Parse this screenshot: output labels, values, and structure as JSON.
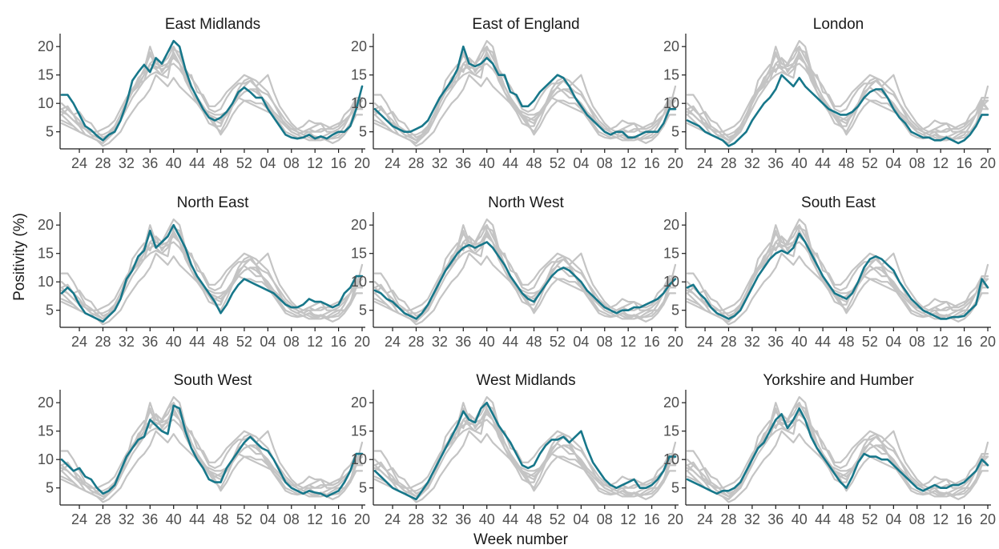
{
  "chart_data": {
    "type": "line",
    "xlabel": "Week number",
    "ylabel": "Positivity (%)",
    "x_ticks": [
      "24",
      "28",
      "32",
      "36",
      "40",
      "44",
      "48",
      "52",
      "04",
      "08",
      "12",
      "16",
      "20"
    ],
    "y_ticks": [
      5,
      10,
      15,
      20
    ],
    "ylim": [
      2,
      22
    ],
    "grid": false,
    "week_order": [
      21,
      22,
      23,
      24,
      25,
      26,
      27,
      28,
      29,
      30,
      31,
      32,
      33,
      34,
      35,
      36,
      37,
      38,
      39,
      40,
      41,
      42,
      43,
      44,
      45,
      46,
      47,
      48,
      49,
      50,
      51,
      52,
      "01",
      "02",
      "03",
      "04",
      "05",
      "06",
      "07",
      "08",
      "09",
      "10",
      "11",
      "12",
      "13",
      "14",
      "15",
      "16",
      "17",
      "18",
      "19",
      "20"
    ],
    "highlight_color": "#17778a",
    "other_regions_color": "#c4c4c4",
    "panels": [
      {
        "region": "East Midlands",
        "values": [
          11.5,
          11.5,
          10,
          8,
          6,
          5.3,
          4.3,
          3.5,
          4.5,
          5,
          7,
          10,
          14,
          15.5,
          16.8,
          15.5,
          18,
          17,
          19,
          21,
          20,
          16,
          13,
          11,
          9,
          7.5,
          7,
          7.5,
          8.5,
          10,
          12,
          12.8,
          12,
          11,
          11,
          9,
          7.5,
          6,
          4.5,
          4,
          3.8,
          4,
          4.5,
          3.8,
          4.2,
          3.8,
          4.5,
          5,
          5,
          6,
          9,
          13
        ]
      },
      {
        "region": "East of England",
        "values": [
          9,
          8,
          7,
          6,
          5.5,
          5,
          5,
          5.5,
          6,
          7,
          9,
          11,
          12.5,
          14,
          16,
          20,
          17,
          16.5,
          17,
          18,
          17,
          15,
          15,
          12,
          11.5,
          9.5,
          9.5,
          10.5,
          12,
          13,
          14,
          15,
          14.5,
          13,
          11,
          9.5,
          8,
          7,
          6,
          5,
          4.5,
          5,
          5,
          4,
          4,
          4.5,
          5,
          5,
          5,
          6.5,
          9,
          9
        ]
      },
      {
        "region": "London",
        "values": [
          7,
          6.5,
          6,
          5,
          4.5,
          4,
          3.5,
          2.5,
          3,
          4,
          5,
          7,
          8.5,
          10,
          11,
          12.5,
          15,
          14,
          13,
          14.5,
          13,
          12,
          11,
          10,
          9,
          8.5,
          8,
          8,
          8.5,
          9.5,
          11,
          12,
          12.5,
          12.5,
          11,
          9,
          7.5,
          6.5,
          5,
          4.5,
          4,
          4,
          3.5,
          3.5,
          4,
          3.5,
          3,
          3.5,
          4.5,
          6,
          8,
          8
        ]
      },
      {
        "region": "North East",
        "values": [
          8,
          9,
          8,
          6,
          4.5,
          4,
          3.5,
          3,
          4,
          5,
          7,
          10.5,
          12,
          14.5,
          15.5,
          19,
          16,
          17,
          18,
          20,
          18,
          16,
          13,
          11,
          9.5,
          8,
          6.5,
          4.5,
          6,
          8,
          9.5,
          10.5,
          10,
          9.5,
          9,
          8.5,
          8,
          7,
          6,
          5.5,
          5.5,
          6,
          7,
          6.5,
          6.5,
          6,
          5.5,
          6,
          8,
          9,
          11,
          11
        ]
      },
      {
        "region": "North West",
        "values": [
          8.5,
          8,
          7,
          6.5,
          5.5,
          4.5,
          4,
          3.5,
          4.5,
          6,
          8,
          10,
          12,
          13.5,
          15,
          16,
          16.5,
          16,
          16.5,
          17,
          16,
          14.5,
          13,
          11,
          9.5,
          8,
          7,
          6.5,
          8,
          9.5,
          11,
          12,
          12.5,
          12,
          11,
          10,
          8.5,
          7.5,
          6.5,
          5.5,
          5,
          4.5,
          5,
          5,
          5.5,
          5.5,
          6,
          6.5,
          7,
          8,
          9.5,
          10.5
        ]
      },
      {
        "region": "South East",
        "values": [
          9,
          9.5,
          8,
          7,
          5.5,
          4.5,
          4,
          3.5,
          4,
          5,
          7,
          9,
          11,
          12.5,
          14,
          15,
          15.5,
          15,
          16,
          18.5,
          17,
          15,
          13,
          11,
          9.5,
          8,
          7.5,
          7,
          8,
          10,
          12.5,
          14,
          14.5,
          14,
          13,
          12,
          10,
          8.5,
          7,
          6,
          5,
          4.5,
          4,
          3.5,
          3.5,
          3.8,
          3.8,
          4,
          5,
          6,
          10.5,
          9
        ]
      },
      {
        "region": "South West",
        "values": [
          10,
          9,
          8,
          8.5,
          7,
          6.5,
          5,
          4,
          4.5,
          5.5,
          8,
          10.5,
          12,
          13.5,
          14,
          17,
          16,
          15,
          14.5,
          19.5,
          19,
          15,
          12,
          10,
          8.5,
          6.5,
          6,
          6,
          8.5,
          10,
          11.5,
          13,
          14,
          13,
          12,
          11.5,
          10,
          8,
          6,
          5,
          4.5,
          4,
          4.5,
          4.2,
          4,
          3.5,
          4,
          4.5,
          6,
          8,
          11,
          11
        ]
      },
      {
        "region": "West Midlands",
        "values": [
          8,
          7,
          6,
          5,
          4.5,
          4,
          3.5,
          3,
          4.5,
          6,
          8,
          10,
          12,
          14,
          16,
          18.5,
          17,
          16.5,
          19,
          20,
          18,
          16,
          14.5,
          13,
          11,
          9,
          8.5,
          9,
          11,
          12.5,
          13.5,
          13.5,
          14,
          13,
          14,
          15,
          12,
          9.5,
          8,
          6.5,
          5.5,
          5,
          5.5,
          6,
          6.5,
          5,
          5,
          5.5,
          6.5,
          8,
          10.5,
          10.5
        ]
      },
      {
        "region": "Yorkshire and Humber",
        "values": [
          6.5,
          6,
          5.5,
          5,
          4.5,
          4,
          4.5,
          4.5,
          5,
          6,
          8,
          10,
          12,
          13,
          15,
          17,
          18,
          15.5,
          17,
          19,
          17,
          14,
          12,
          10.5,
          9,
          7.5,
          6,
          5,
          7,
          9.5,
          11,
          10.5,
          10.5,
          10,
          10,
          9,
          8,
          7,
          6,
          5,
          4.5,
          5,
          5.5,
          5,
          5,
          5.5,
          5.5,
          6,
          7,
          8,
          10,
          9
        ]
      }
    ]
  },
  "panels": [
    {
      "title": "East Midlands"
    },
    {
      "title": "East of England"
    },
    {
      "title": "London"
    },
    {
      "title": "North East"
    },
    {
      "title": "North West"
    },
    {
      "title": "South East"
    },
    {
      "title": "South West"
    },
    {
      "title": "West Midlands"
    },
    {
      "title": "Yorkshire and Humber"
    }
  ]
}
